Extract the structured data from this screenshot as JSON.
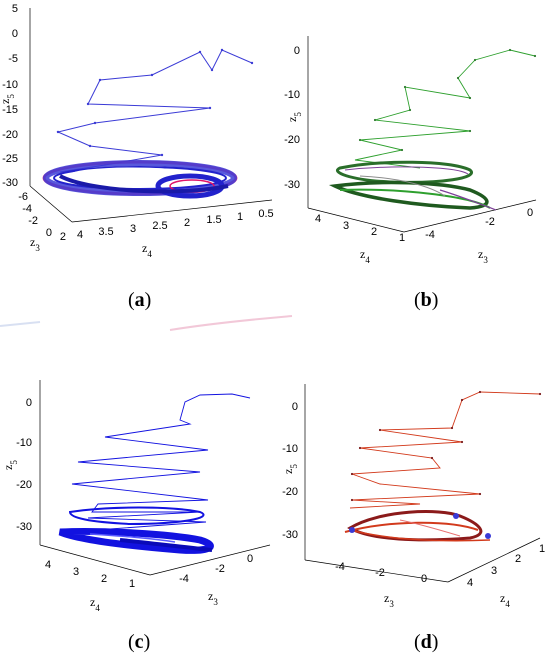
{
  "chart_data": [
    {
      "panel": "(a)",
      "type": "line",
      "projection": "3d",
      "line_color": "#3b3bd6",
      "marker_color": "#e0156a",
      "axes": {
        "z5_ticks": [
          "5",
          "0",
          "-5",
          "-10",
          "-15",
          "-20",
          "-25",
          "-30"
        ],
        "z3_ticks": [
          "-6",
          "-4",
          "-2",
          "0",
          "2"
        ],
        "z4_ticks": [
          "4",
          "3.5",
          "3",
          "2.5",
          "2",
          "1.5",
          "1",
          "0.5"
        ],
        "x_label": "z4",
        "y_label": "z3",
        "z_label": "z5",
        "z5_range": [
          -30,
          5
        ]
      },
      "transient_z5": [
        0,
        -5,
        -10,
        -15,
        -20,
        -25
      ],
      "attractor_z5": -28
    },
    {
      "panel": "(b)",
      "type": "line",
      "projection": "3d",
      "line_color": "#2ea02e",
      "marker_color": "#7d3f98",
      "axes": {
        "z5_ticks": [
          "0",
          "-10",
          "-20",
          "-30"
        ],
        "z4_ticks": [
          "4",
          "3",
          "2",
          "1"
        ],
        "z3_ticks": [
          "-4",
          "-2",
          "0"
        ],
        "x_label": "z4",
        "y_label": "z3",
        "z_label": "z5",
        "z5_range": [
          -35,
          5
        ]
      },
      "transient_z5": [
        0,
        -5,
        -10,
        -15,
        -20,
        -25
      ],
      "attractor_z5": -30
    },
    {
      "panel": "(c)",
      "type": "line",
      "projection": "3d",
      "line_color": "#1212e0",
      "axes": {
        "z5_ticks": [
          "0",
          "-10",
          "-20",
          "-30"
        ],
        "z4_ticks": [
          "4",
          "3",
          "2",
          "1"
        ],
        "z3_ticks": [
          "-4",
          "-2",
          "0"
        ],
        "x_label": "z4",
        "y_label": "z3",
        "z_label": "z5",
        "z5_range": [
          -35,
          5
        ]
      },
      "transient_z5": [
        0,
        -5,
        -10,
        -15,
        -20,
        -25
      ],
      "attractor_z5": -32
    },
    {
      "panel": "(d)",
      "type": "line",
      "projection": "3d",
      "line_color": "#d23a1c",
      "marker_color": "#1a1a9e",
      "axes": {
        "z5_ticks": [
          "0",
          "-10",
          "-20",
          "-30"
        ],
        "z3_ticks": [
          "-4",
          "-2",
          "0"
        ],
        "z4_ticks": [
          "4",
          "3",
          "2",
          "1"
        ],
        "x_label": "z3",
        "y_label": "z4",
        "z_label": "z5",
        "z5_range": [
          -35,
          5
        ]
      },
      "transient_z5": [
        0,
        -5,
        -10,
        -15,
        -20,
        -25
      ],
      "attractor_z5": -31
    }
  ],
  "captions": {
    "a": "a",
    "b": "b",
    "c": "c",
    "d": "d"
  }
}
